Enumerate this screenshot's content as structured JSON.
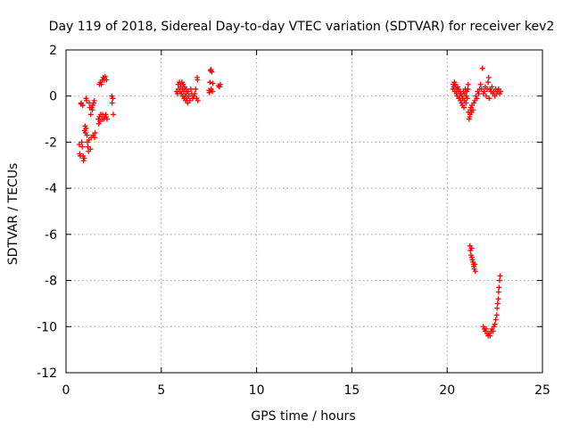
{
  "chart_data": {
    "type": "scatter",
    "title": "Day 119 of 2018, Sidereal Day-to-day VTEC variation (SDTVAR) for receiver kev2",
    "xlabel": "GPS time / hours",
    "ylabel": "SDTVAR / TECUs",
    "xlim": [
      0,
      25
    ],
    "ylim": [
      -12,
      2
    ],
    "xticks": [
      0,
      5,
      10,
      15,
      20,
      25
    ],
    "yticks": [
      -12,
      -10,
      -8,
      -6,
      -4,
      -2,
      0,
      2
    ],
    "grid": true,
    "marker": "+",
    "color": "#ff0000",
    "series": [
      {
        "name": "SDTVAR",
        "points": [
          [
            0.7,
            -2.1
          ],
          [
            0.72,
            -2.5
          ],
          [
            0.75,
            -2.6
          ],
          [
            0.78,
            -0.35
          ],
          [
            0.8,
            -0.3
          ],
          [
            0.83,
            -2.0
          ],
          [
            0.85,
            -2.2
          ],
          [
            0.88,
            -0.4
          ],
          [
            0.9,
            -2.6
          ],
          [
            0.92,
            -2.8
          ],
          [
            0.95,
            -2.7
          ],
          [
            0.97,
            -1.5
          ],
          [
            1.0,
            -1.3
          ],
          [
            1.02,
            -1.6
          ],
          [
            1.05,
            -1.4
          ],
          [
            1.05,
            -0.1
          ],
          [
            1.08,
            -0.2
          ],
          [
            1.1,
            -1.7
          ],
          [
            1.12,
            -2.0
          ],
          [
            1.15,
            -2.2
          ],
          [
            1.18,
            -2.4
          ],
          [
            1.2,
            -1.9
          ],
          [
            1.22,
            -0.3
          ],
          [
            1.25,
            -0.5
          ],
          [
            1.28,
            -2.3
          ],
          [
            1.3,
            -0.8
          ],
          [
            1.32,
            -1.8
          ],
          [
            1.35,
            -0.5
          ],
          [
            1.38,
            -0.6
          ],
          [
            1.4,
            -0.4
          ],
          [
            1.42,
            -1.7
          ],
          [
            1.45,
            -0.3
          ],
          [
            1.48,
            -0.2
          ],
          [
            1.5,
            -1.8
          ],
          [
            1.52,
            -1.6
          ],
          [
            1.7,
            -1.0
          ],
          [
            1.72,
            -1.2
          ],
          [
            1.75,
            -0.9
          ],
          [
            1.75,
            0.5
          ],
          [
            1.78,
            -1.1
          ],
          [
            1.8,
            0.6
          ],
          [
            1.82,
            -0.8
          ],
          [
            1.85,
            0.5
          ],
          [
            1.88,
            -1.0
          ],
          [
            1.9,
            0.7
          ],
          [
            1.92,
            -0.8
          ],
          [
            1.95,
            0.8
          ],
          [
            1.98,
            -1.0
          ],
          [
            2.0,
            0.7
          ],
          [
            2.02,
            -0.9
          ],
          [
            2.05,
            0.85
          ],
          [
            2.08,
            -0.8
          ],
          [
            2.1,
            -0.9
          ],
          [
            2.12,
            0.7
          ],
          [
            2.15,
            -1.0
          ],
          [
            2.4,
            0.0
          ],
          [
            2.42,
            -0.3
          ],
          [
            2.45,
            -0.1
          ],
          [
            2.48,
            -0.8
          ],
          [
            5.8,
            0.2
          ],
          [
            5.85,
            0.1
          ],
          [
            5.88,
            0.5
          ],
          [
            5.9,
            0.3
          ],
          [
            5.95,
            0.6
          ],
          [
            5.98,
            0.2
          ],
          [
            6.0,
            0.4
          ],
          [
            6.02,
            0.5
          ],
          [
            6.05,
            0.1
          ],
          [
            6.08,
            0.6
          ],
          [
            6.1,
            0.3
          ],
          [
            6.12,
            0.0
          ],
          [
            6.15,
            0.5
          ],
          [
            6.18,
            0.2
          ],
          [
            6.2,
            -0.1
          ],
          [
            6.22,
            0.4
          ],
          [
            6.25,
            0.0
          ],
          [
            6.28,
            -0.2
          ],
          [
            6.3,
            0.3
          ],
          [
            6.32,
            0.1
          ],
          [
            6.35,
            -0.1
          ],
          [
            6.38,
            -0.3
          ],
          [
            6.4,
            0.2
          ],
          [
            6.45,
            0.0
          ],
          [
            6.5,
            -0.2
          ],
          [
            6.55,
            0.3
          ],
          [
            6.6,
            0.1
          ],
          [
            6.65,
            -0.1
          ],
          [
            6.7,
            0.0
          ],
          [
            6.75,
            0.1
          ],
          [
            6.8,
            0.3
          ],
          [
            6.85,
            -0.1
          ],
          [
            6.88,
            0.8
          ],
          [
            6.9,
            0.7
          ],
          [
            6.92,
            -0.2
          ],
          [
            7.5,
            0.25
          ],
          [
            7.52,
            0.15
          ],
          [
            7.55,
            0.6
          ],
          [
            7.58,
            1.1
          ],
          [
            7.6,
            1.15
          ],
          [
            7.62,
            0.3
          ],
          [
            7.65,
            1.05
          ],
          [
            7.68,
            0.2
          ],
          [
            7.7,
            0.55
          ],
          [
            8.0,
            0.45
          ],
          [
            8.05,
            0.4
          ],
          [
            8.1,
            0.5
          ],
          [
            20.3,
            0.3
          ],
          [
            20.32,
            0.5
          ],
          [
            20.35,
            0.4
          ],
          [
            20.38,
            0.6
          ],
          [
            20.4,
            0.2
          ],
          [
            20.42,
            0.5
          ],
          [
            20.45,
            0.4
          ],
          [
            20.48,
            0.1
          ],
          [
            20.5,
            0.3
          ],
          [
            20.52,
            0.0
          ],
          [
            20.55,
            0.4
          ],
          [
            20.58,
            0.2
          ],
          [
            20.6,
            0.3
          ],
          [
            20.62,
            -0.1
          ],
          [
            20.65,
            0.0
          ],
          [
            20.68,
            0.2
          ],
          [
            20.7,
            -0.2
          ],
          [
            20.72,
            0.1
          ],
          [
            20.75,
            -0.3
          ],
          [
            20.78,
            0.0
          ],
          [
            20.8,
            -0.4
          ],
          [
            20.82,
            -0.1
          ],
          [
            20.85,
            0.2
          ],
          [
            20.88,
            -0.5
          ],
          [
            20.9,
            -0.2
          ],
          [
            20.92,
            0.1
          ],
          [
            20.95,
            0.3
          ],
          [
            20.98,
            -0.3
          ],
          [
            21.0,
            0.0
          ],
          [
            21.02,
            0.2
          ],
          [
            21.05,
            -0.1
          ],
          [
            21.08,
            0.3
          ],
          [
            21.1,
            0.5
          ],
          [
            21.12,
            -0.7
          ],
          [
            21.15,
            -1.0
          ],
          [
            21.18,
            -0.9
          ],
          [
            21.2,
            -0.8
          ],
          [
            21.22,
            -0.6
          ],
          [
            21.25,
            -0.5
          ],
          [
            21.28,
            -0.7
          ],
          [
            21.3,
            -0.4
          ],
          [
            21.35,
            -0.6
          ],
          [
            21.4,
            -0.3
          ],
          [
            21.45,
            -0.2
          ],
          [
            21.5,
            0.0
          ],
          [
            21.55,
            -0.1
          ],
          [
            21.6,
            0.2
          ],
          [
            21.65,
            0.1
          ],
          [
            21.7,
            0.3
          ],
          [
            21.75,
            0.5
          ],
          [
            21.8,
            0.3
          ],
          [
            21.85,
            1.2
          ],
          [
            21.9,
            0.1
          ],
          [
            21.95,
            0.2
          ],
          [
            22.0,
            0.4
          ],
          [
            22.05,
            0.0
          ],
          [
            22.1,
            0.3
          ],
          [
            22.15,
            0.6
          ],
          [
            22.18,
            0.8
          ],
          [
            22.2,
            -0.1
          ],
          [
            22.25,
            0.3
          ],
          [
            22.3,
            0.2
          ],
          [
            22.35,
            0.4
          ],
          [
            22.4,
            0.1
          ],
          [
            22.45,
            0.2
          ],
          [
            22.5,
            0.0
          ],
          [
            22.55,
            0.3
          ],
          [
            22.6,
            0.1
          ],
          [
            22.65,
            0.2
          ],
          [
            22.7,
            0.3
          ],
          [
            22.75,
            0.1
          ],
          [
            22.8,
            0.2
          ],
          [
            21.2,
            -6.5
          ],
          [
            21.22,
            -6.7
          ],
          [
            21.25,
            -6.9
          ],
          [
            21.28,
            -6.6
          ],
          [
            21.3,
            -7.0
          ],
          [
            21.32,
            -7.1
          ],
          [
            21.35,
            -7.2
          ],
          [
            21.38,
            -7.3
          ],
          [
            21.4,
            -7.4
          ],
          [
            21.42,
            -7.5
          ],
          [
            21.45,
            -7.3
          ],
          [
            21.48,
            -7.6
          ],
          [
            21.9,
            -10.0
          ],
          [
            21.95,
            -10.1
          ],
          [
            22.0,
            -10.2
          ],
          [
            22.05,
            -10.1
          ],
          [
            22.1,
            -10.3
          ],
          [
            22.15,
            -10.4
          ],
          [
            22.2,
            -10.3
          ],
          [
            22.25,
            -10.4
          ],
          [
            22.3,
            -10.2
          ],
          [
            22.35,
            -10.1
          ],
          [
            22.4,
            -10.2
          ],
          [
            22.45,
            -10.0
          ],
          [
            22.5,
            -9.9
          ],
          [
            22.55,
            -9.7
          ],
          [
            22.6,
            -9.5
          ],
          [
            22.62,
            -9.2
          ],
          [
            22.65,
            -9.0
          ],
          [
            22.68,
            -8.8
          ],
          [
            22.7,
            -8.5
          ],
          [
            22.72,
            -8.3
          ],
          [
            22.75,
            -8.0
          ],
          [
            22.78,
            -7.8
          ]
        ]
      }
    ]
  }
}
